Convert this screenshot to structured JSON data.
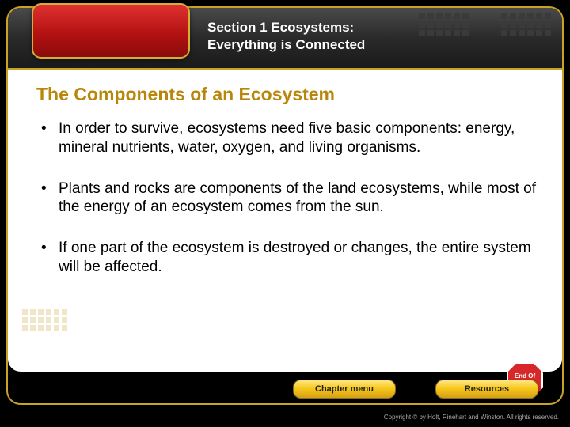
{
  "header": {
    "section_line1": "Section 1 Ecosystems:",
    "section_line2": "Everything is Connected"
  },
  "slide": {
    "heading": "The Components of an Ecosystem",
    "bullets": [
      "In order to survive, ecosystems need five basic components: energy, mineral nutrients, water, oxygen, and living organisms.",
      "Plants and rocks are components of the land ecosystems, while most of the energy of an ecosystem comes from the sun.",
      "If one part of the ecosystem is destroyed or changes, the entire system will be affected."
    ]
  },
  "nav": {
    "chapter_menu": "Chapter menu",
    "resources": "Resources",
    "end_of_slide": "End Of Slide"
  },
  "footer": {
    "copyright": "Copyright © by Holt, Rinehart and Winston. All rights reserved."
  },
  "colors": {
    "gold": "#c9a227",
    "heading": "#b8860b",
    "red_badge": "#b01010",
    "header_bg": "#2a2a2a",
    "content_bg": "#ffffff"
  }
}
